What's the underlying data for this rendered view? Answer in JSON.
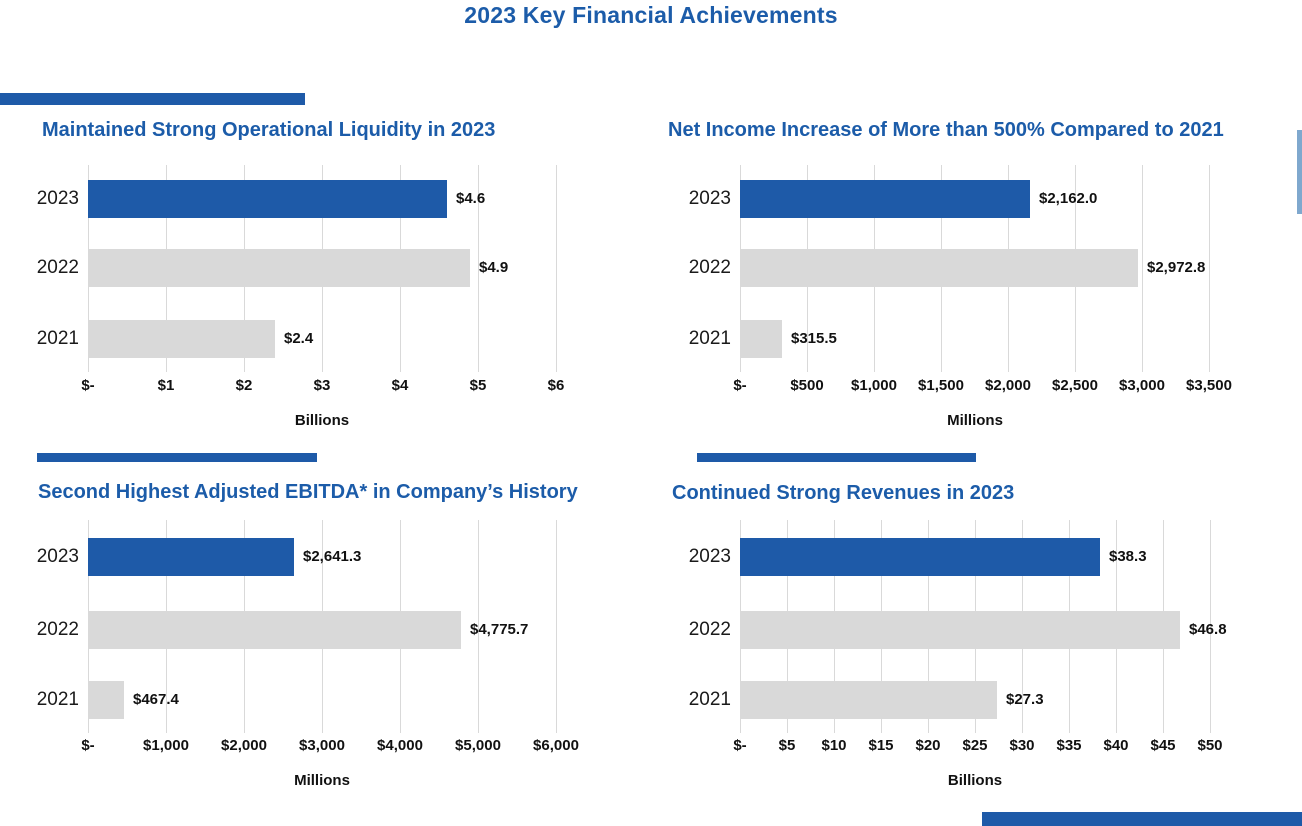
{
  "header": {
    "title": "2023 Key Financial Achievements"
  },
  "colors": {
    "accent_blue": "#1E5AA8",
    "title_blue": "#1C5CA9",
    "bar_blue": "#1E5AA8",
    "bar_gray": "#D9D9D9",
    "gridline": "#D9D9D9",
    "label_black": "#111111",
    "edge_sliver_blue": "#7FA8CE"
  },
  "chart_data": [
    {
      "type": "bar",
      "orientation": "horizontal",
      "title": "Maintained Strong Operational Liquidity in 2023",
      "categories": [
        "2023",
        "2022",
        "2021"
      ],
      "values": [
        4.6,
        4.9,
        2.4
      ],
      "value_labels": [
        "$4.6",
        "$4.9",
        "$2.4"
      ],
      "tick_labels": [
        "$-",
        "$1",
        "$2",
        "$3",
        "$4",
        "$5",
        "$6"
      ],
      "xlim": [
        0,
        6
      ],
      "xlabel": "Billions",
      "grid": true,
      "legend": "none",
      "highlight_category": "2023"
    },
    {
      "type": "bar",
      "orientation": "horizontal",
      "title": "Net Income Increase of More than 500% Compared to 2021",
      "categories": [
        "2023",
        "2022",
        "2021"
      ],
      "values": [
        2162.0,
        2972.8,
        315.5
      ],
      "value_labels": [
        "$2,162.0",
        "$2,972.8",
        "$315.5"
      ],
      "tick_labels": [
        "$-",
        "$500",
        "$1,000",
        "$1,500",
        "$2,000",
        "$2,500",
        "$3,000",
        "$3,500"
      ],
      "xlim": [
        0,
        3500
      ],
      "xlabel": "Millions",
      "grid": true,
      "legend": "none",
      "highlight_category": "2023"
    },
    {
      "type": "bar",
      "orientation": "horizontal",
      "title": "Second Highest Adjusted EBITDA* in Company’s History",
      "categories": [
        "2023",
        "2022",
        "2021"
      ],
      "values": [
        2641.3,
        4775.7,
        467.4
      ],
      "value_labels": [
        "$2,641.3",
        "$4,775.7",
        "$467.4"
      ],
      "tick_labels": [
        "$-",
        "$1,000",
        "$2,000",
        "$3,000",
        "$4,000",
        "$5,000",
        "$6,000"
      ],
      "xlim": [
        0,
        6000
      ],
      "xlabel": "Millions",
      "grid": true,
      "legend": "none",
      "highlight_category": "2023"
    },
    {
      "type": "bar",
      "orientation": "horizontal",
      "title": "Continued Strong Revenues in 2023",
      "categories": [
        "2023",
        "2022",
        "2021"
      ],
      "values": [
        38.3,
        46.8,
        27.3
      ],
      "value_labels": [
        "$38.3",
        "$46.8",
        "$27.3"
      ],
      "tick_labels": [
        "$-",
        "$5",
        "$10",
        "$15",
        "$20",
        "$25",
        "$30",
        "$35",
        "$40",
        "$45",
        "$50"
      ],
      "xlim": [
        0,
        50
      ],
      "xlabel": "Billions",
      "grid": true,
      "legend": "none",
      "highlight_category": "2023"
    }
  ]
}
